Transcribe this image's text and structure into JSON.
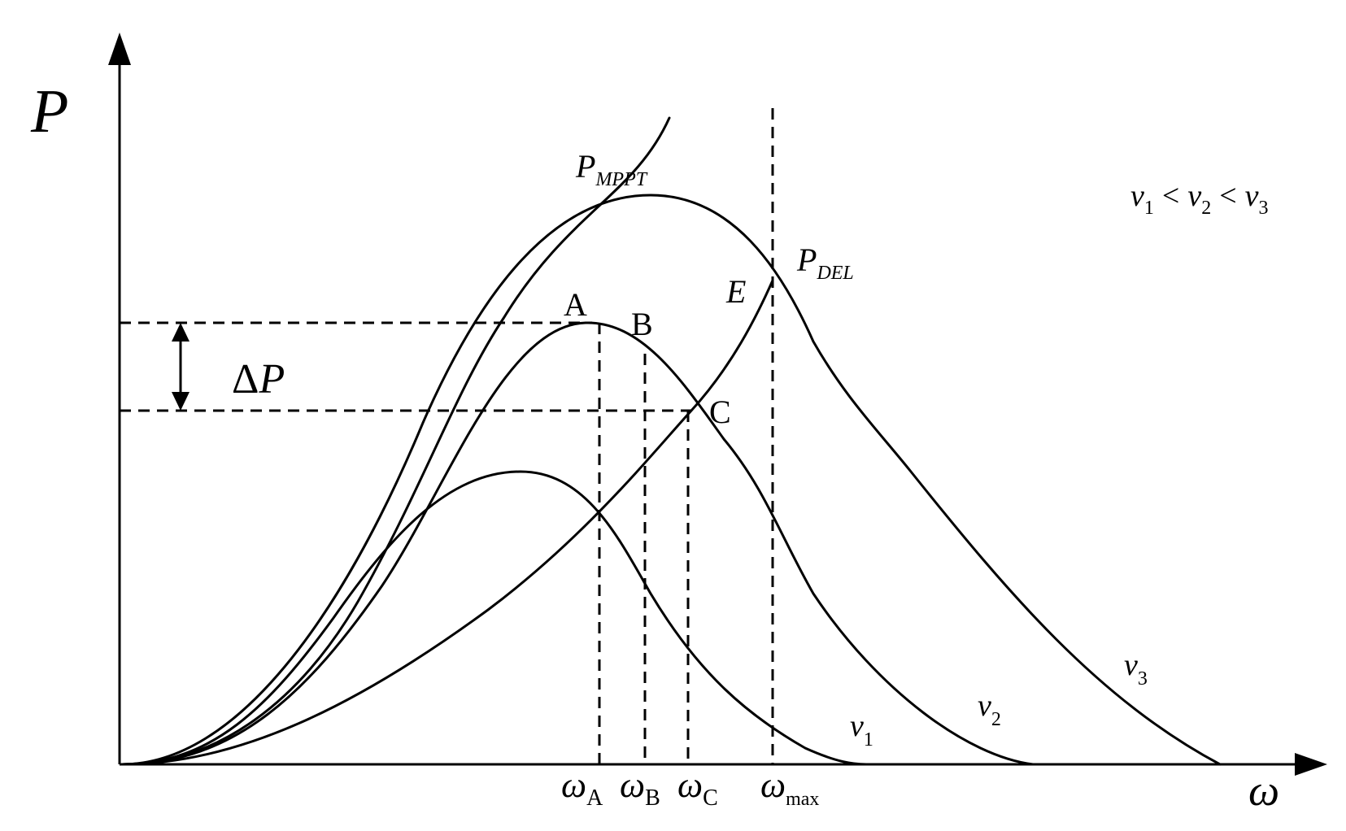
{
  "axes": {
    "y_label": "P",
    "x_label": "ω"
  },
  "legend": {
    "condition": {
      "v": "v",
      "sub1": "1",
      "lt1": "<",
      "sub2": "2",
      "lt2": "<",
      "sub3": "3"
    }
  },
  "curves": {
    "v1": {
      "name": "v",
      "sub": "1"
    },
    "v2": {
      "name": "v",
      "sub": "2"
    },
    "v3": {
      "name": "v",
      "sub": "3"
    },
    "mppt": {
      "name": "P",
      "sub": "MPPT"
    },
    "del": {
      "name": "P",
      "sub": "DEL"
    }
  },
  "points": {
    "A": "A",
    "B": "B",
    "C": "C",
    "E": "E"
  },
  "delta_p": {
    "delta": "Δ",
    "p": "P"
  },
  "ticks": {
    "omega_a": {
      "sym": "ω",
      "sub": "A"
    },
    "omega_b": {
      "sym": "ω",
      "sub": "B"
    },
    "omega_c": {
      "sym": "ω",
      "sub": "C"
    },
    "omega_max": {
      "sym": "ω",
      "sub": "max"
    }
  }
}
